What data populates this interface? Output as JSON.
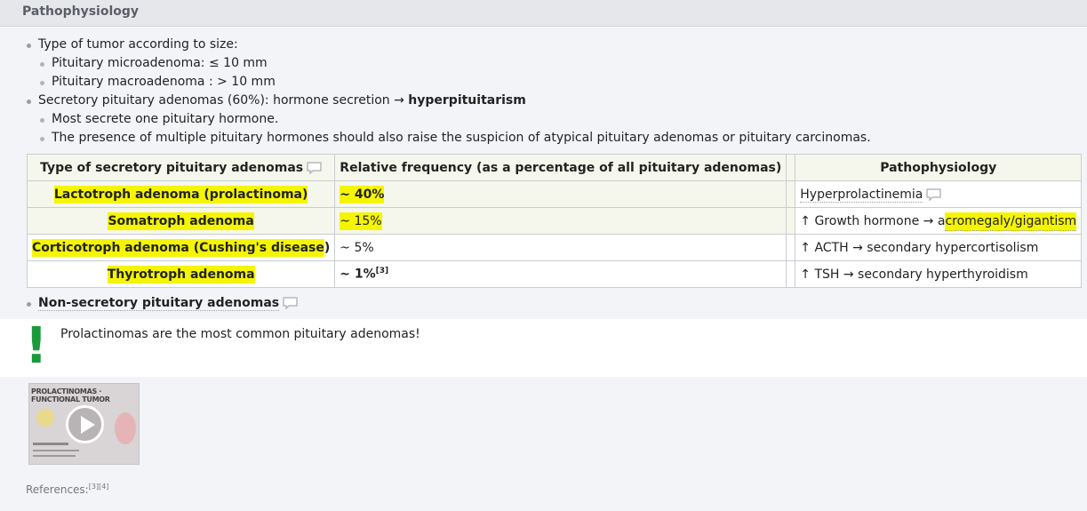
{
  "section": {
    "title": "Pathophysiology"
  },
  "bullets": {
    "size_title": "Type of tumor according to size:",
    "micro": "Pituitary microadenoma: ≤ 10 mm",
    "macro": "Pituitary macroadenoma : > 10 mm",
    "secretory_pre": "Secretory pituitary adenomas (60%): hormone secretion → ",
    "secretory_bold": "hyperpituitarism",
    "one_hormone": "Most secrete one pituitary hormone.",
    "multiple": "The presence of multiple pituitary hormones should also raise the suspicion of atypical pituitary adenomas or pituitary carcinomas."
  },
  "table": {
    "headers": {
      "type": "Type of secretory pituitary adenomas",
      "freq": "Relative frequency (as a percentage of all pituitary adenomas)",
      "patho": "Pathophysiology"
    },
    "rows": [
      {
        "type": "Lactotroph adenoma (prolactinoma)",
        "freq": "~ 40%",
        "patho": "Hyperprolactinemia"
      },
      {
        "type": "Somatroph adenoma",
        "freq": "~ 15%",
        "patho_pre": "↑ Growth hormone → a",
        "patho_hl": "cromegaly/gigantism"
      },
      {
        "type": "Corticotroph adenoma (Cushing's disease",
        "type_tail": ")",
        "freq": "~ 5%",
        "patho": "↑ ACTH → secondary hypercortisolism"
      },
      {
        "type": "Thyrotroph adenoma",
        "freq": "~ 1%",
        "freq_ref": "[3]",
        "patho": "↑ TSH → secondary hyperthyroidism"
      }
    ]
  },
  "non_secretory": "Non-secretory pituitary adenomas",
  "callout": {
    "mark": "!",
    "text": "Prolactinomas are the most common pituitary adenomas!"
  },
  "video": {
    "title": "PROLACTINOMAS · FUNCTIONAL TUMOR"
  },
  "references": {
    "label": "References:",
    "refs": "[3][4]"
  }
}
